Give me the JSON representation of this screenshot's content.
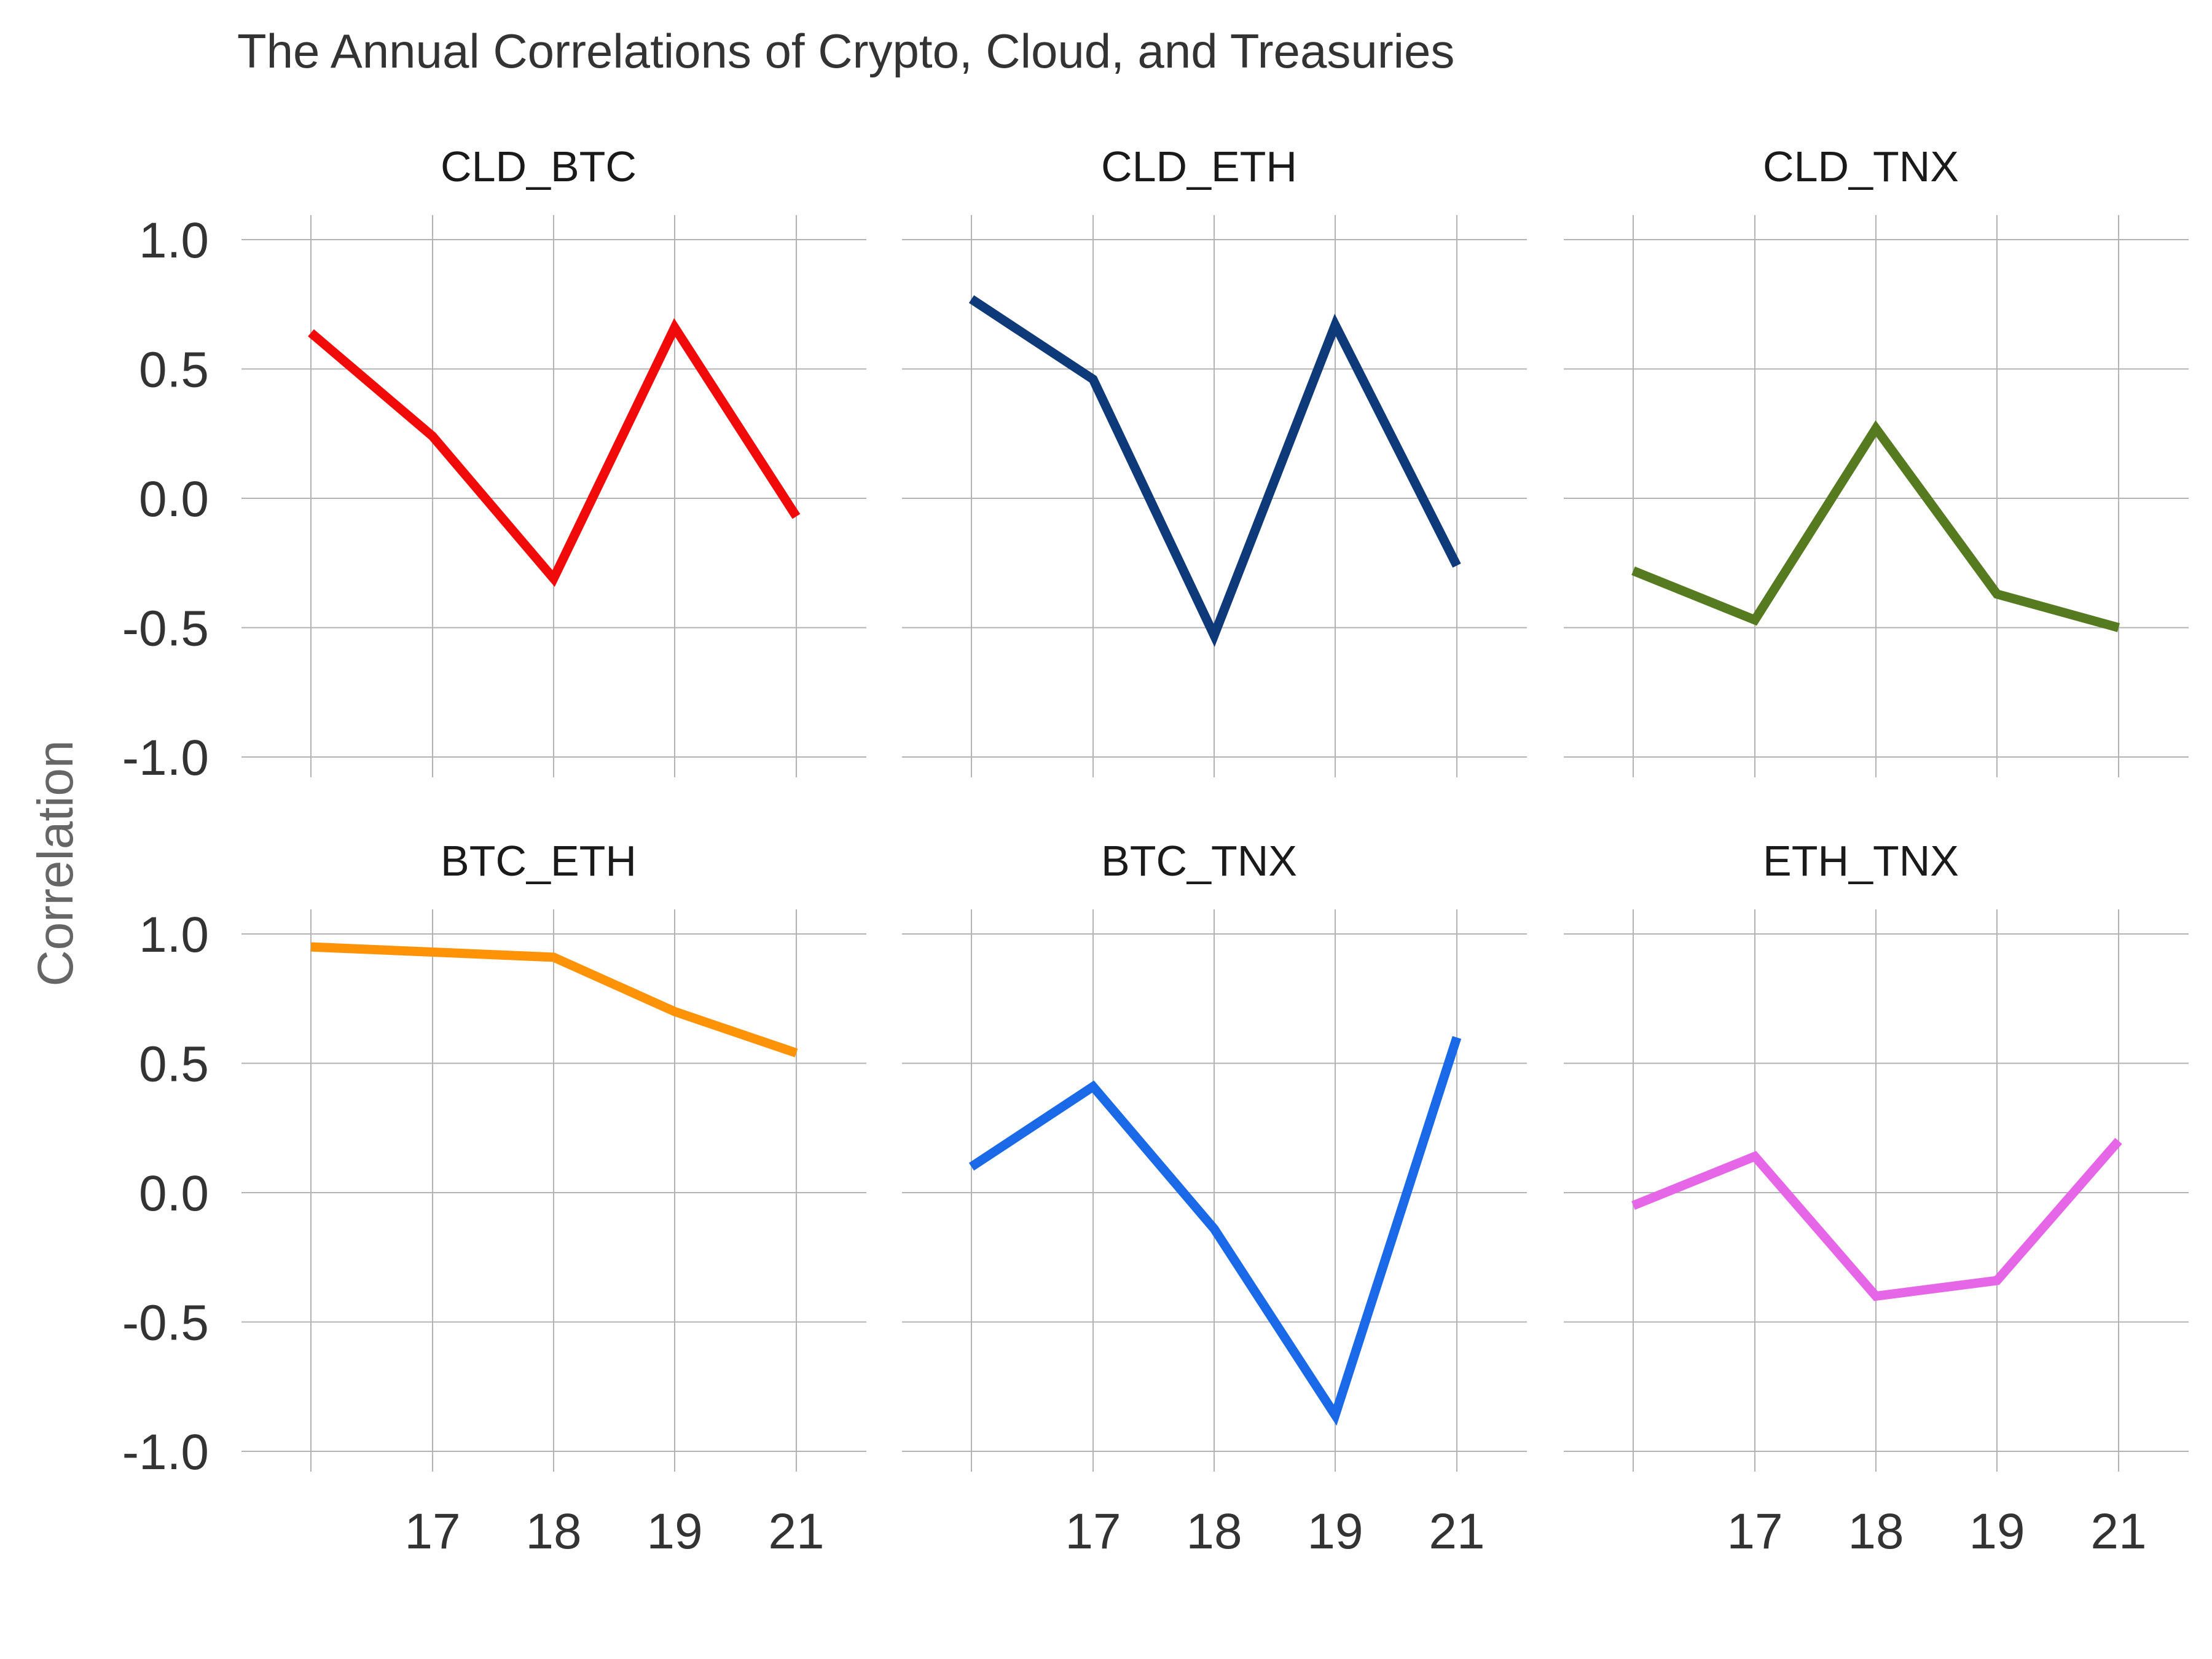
{
  "chart_data": {
    "type": "line",
    "title": "The Annual Correlations of Crypto, Cloud, and Treasuries",
    "xlabel": "",
    "ylabel": "Correlation",
    "x_tick_labels": [
      "17",
      "18",
      "19",
      "21"
    ],
    "y_tick_labels": [
      "1.0",
      "0.5",
      "0.0",
      "-0.5",
      "-1.0"
    ],
    "ylim": [
      -1.0,
      1.0
    ],
    "grid": true,
    "legend": "none",
    "panels": [
      {
        "name": "CLD_BTC",
        "color": "#f00a0a",
        "values": [
          0.64,
          0.24,
          -0.31,
          0.66,
          -0.07
        ]
      },
      {
        "name": "CLD_ETH",
        "color": "#0f3a7a",
        "values": [
          0.77,
          0.46,
          -0.53,
          0.67,
          -0.26
        ]
      },
      {
        "name": "CLD_TNX",
        "color": "#557a1f",
        "values": [
          -0.28,
          -0.47,
          0.27,
          -0.37,
          -0.5
        ]
      },
      {
        "name": "BTC_ETH",
        "color": "#ff9308",
        "values": [
          0.95,
          0.93,
          0.91,
          0.7,
          0.54
        ]
      },
      {
        "name": "BTC_TNX",
        "color": "#1a6ae8",
        "values": [
          0.1,
          0.41,
          -0.14,
          -0.86,
          0.6
        ]
      },
      {
        "name": "ETH_TNX",
        "color": "#e566e6",
        "values": [
          -0.05,
          0.14,
          -0.4,
          -0.34,
          0.2
        ]
      }
    ]
  }
}
